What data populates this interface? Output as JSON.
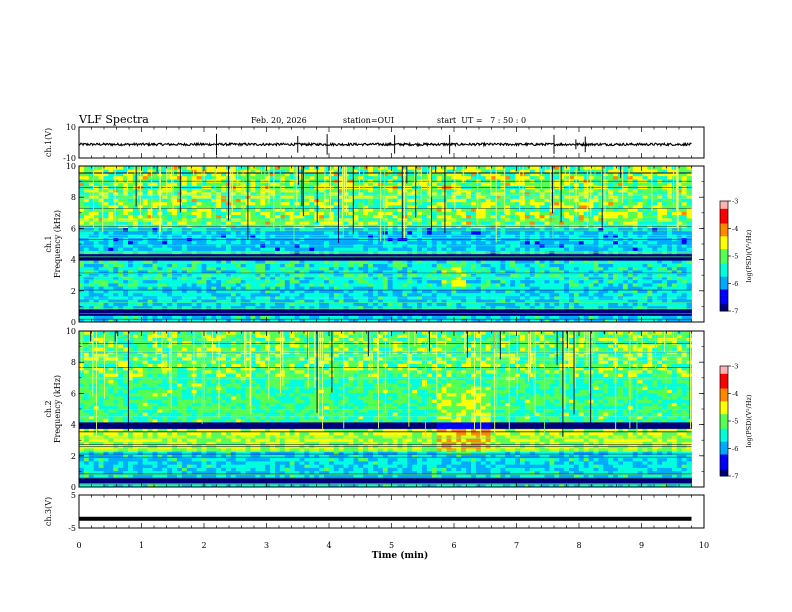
{
  "header": {
    "title": "VLF Spectra",
    "date": "Feb. 20, 2026",
    "station": "station=OUI",
    "start": "start  UT =   7 : 50 : 0"
  },
  "chart_data": [
    {
      "type": "line",
      "name": "ch1-waveform",
      "ylabel": "ch.1(V)",
      "ylim": [
        -10,
        10
      ],
      "yticks": [
        "10",
        "-10"
      ],
      "xlim": [
        0,
        10
      ],
      "data_end_min": 9.8,
      "baseline": -1.2,
      "spikes_min": [
        2.2,
        3.5,
        3.97,
        5.05,
        5.93,
        7.6,
        7.95,
        8.1
      ]
    },
    {
      "type": "heatmap",
      "name": "ch1-spectrogram",
      "ylabel": "Frequency (kHz)",
      "channel": "ch.1",
      "ylim": [
        0,
        10
      ],
      "yticks": [
        "0",
        "2",
        "4",
        "6",
        "8",
        "10"
      ],
      "xlim": [
        0,
        10
      ],
      "data_end_min": 9.8,
      "colorbar": {
        "label": "log(PSD)(V²/Hz)",
        "ticks": [
          "-3",
          "-4",
          "-5",
          "-6",
          "-7"
        ],
        "range": [
          -7,
          -3
        ]
      }
    },
    {
      "type": "heatmap",
      "name": "ch2-spectrogram",
      "ylabel": "Frequency (kHz)",
      "channel": "ch.2",
      "ylim": [
        0,
        10
      ],
      "yticks": [
        "0",
        "2",
        "4",
        "6",
        "8",
        "10"
      ],
      "xlim": [
        0,
        10
      ],
      "data_end_min": 9.8,
      "colorbar": {
        "label": "log(PSD)(V²/Hz)",
        "ticks": [
          "-3",
          "-4",
          "-5",
          "-6",
          "-7"
        ],
        "range": [
          -7,
          -3
        ]
      }
    },
    {
      "type": "line",
      "name": "ch3-waveform",
      "ylabel": "ch.3(V)",
      "ylim": [
        -5,
        5
      ],
      "yticks": [
        "5",
        "-5"
      ],
      "xlim": [
        0,
        10
      ],
      "data_end_min": 9.8,
      "baseline": -2.2
    }
  ],
  "xaxis": {
    "label": "Time (min)",
    "ticks": [
      "0",
      "1",
      "2",
      "3",
      "4",
      "5",
      "6",
      "7",
      "8",
      "9",
      "10"
    ]
  },
  "colors": {
    "colormap": [
      "#00007a",
      "#0000ff",
      "#00aaff",
      "#00ffdd",
      "#55ff55",
      "#ffff00",
      "#ff8800",
      "#ff0000",
      "#ffb0b0"
    ]
  }
}
